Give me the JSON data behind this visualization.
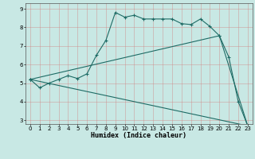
{
  "xlabel": "Humidex (Indice chaleur)",
  "xlim": [
    -0.5,
    23.5
  ],
  "ylim": [
    2.8,
    9.3
  ],
  "yticks": [
    3,
    4,
    5,
    6,
    7,
    8,
    9
  ],
  "xticks": [
    0,
    1,
    2,
    3,
    4,
    5,
    6,
    7,
    8,
    9,
    10,
    11,
    12,
    13,
    14,
    15,
    16,
    17,
    18,
    19,
    20,
    21,
    22,
    23
  ],
  "bg_color": "#c8e8e4",
  "line_color": "#1e6b65",
  "line1_x": [
    0,
    1,
    2,
    3,
    4,
    5,
    6,
    7,
    8,
    9,
    10,
    11,
    12,
    13,
    14,
    15,
    16,
    17,
    18,
    19,
    20,
    21,
    22,
    23
  ],
  "line1_y": [
    5.2,
    4.75,
    5.0,
    5.2,
    5.4,
    5.25,
    5.5,
    6.5,
    7.3,
    8.8,
    8.55,
    8.65,
    8.45,
    8.45,
    8.45,
    8.45,
    8.2,
    8.15,
    8.45,
    8.05,
    7.55,
    6.4,
    4.0,
    2.7
  ],
  "line2_x": [
    0,
    23
  ],
  "line2_y": [
    5.2,
    2.7
  ],
  "line3_x": [
    0,
    20,
    23
  ],
  "line3_y": [
    5.2,
    7.55,
    2.7
  ]
}
